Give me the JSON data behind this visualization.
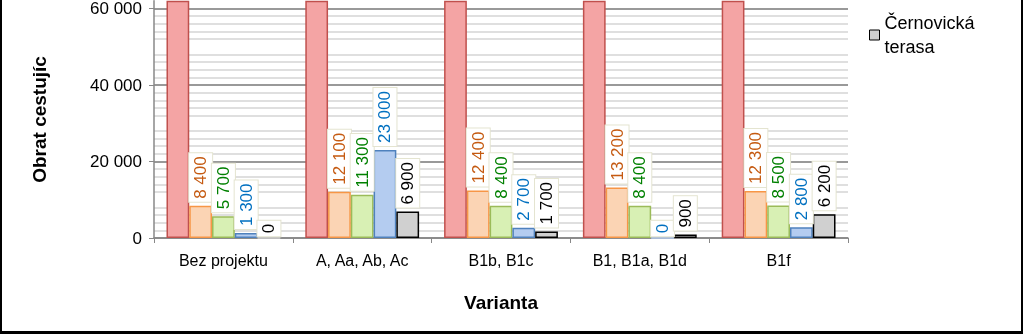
{
  "chart_data": {
    "type": "bar",
    "xlabel": "Varianta",
    "ylabel": "Obrat cestujíc",
    "categories": [
      "Bez projektu",
      "A, Aa, Ab, Ac",
      "B1b, B1c",
      "B1, B1a, B1d",
      "B1f"
    ],
    "series": [
      {
        "color": "#f4a4a4",
        "values": [
          62000,
          62000,
          62000,
          62000,
          62000
        ],
        "value_labels": [
          null,
          null,
          null,
          null,
          null
        ]
      },
      {
        "color": "#fbd4b4",
        "values": [
          8400,
          12100,
          12400,
          13200,
          12300
        ],
        "value_labels": [
          "8 400",
          "12 100",
          "12 400",
          "13 200",
          "12 300"
        ]
      },
      {
        "color": "#d8f0b4",
        "values": [
          5700,
          11300,
          8400,
          8400,
          8500
        ],
        "value_labels": [
          "5 700",
          "11 300",
          "8 400",
          "8 400",
          "8 500"
        ]
      },
      {
        "color": "#b4ccf0",
        "values": [
          1300,
          23000,
          2700,
          0,
          2800
        ],
        "value_labels": [
          "1 300",
          "23 000",
          "2 700",
          "0",
          "2 800"
        ]
      },
      {
        "name": "Černovická terasa",
        "color": "#d0d0d0",
        "values": [
          0,
          6900,
          1700,
          900,
          6200
        ],
        "value_labels": [
          "0",
          "6 900",
          "1 700",
          "900",
          "6 200"
        ]
      }
    ],
    "ylim": [
      0,
      62000
    ],
    "yticks": [
      {
        "value": 0,
        "label": "0"
      },
      {
        "value": 20000,
        "label": "20 000"
      },
      {
        "value": 40000,
        "label": "40 000"
      },
      {
        "value": 60000,
        "label": "60 000"
      }
    ],
    "grid": "y",
    "legend": "right"
  }
}
